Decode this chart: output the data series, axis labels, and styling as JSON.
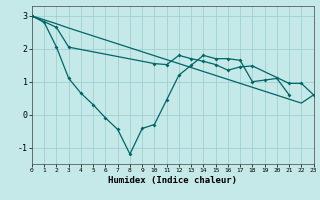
{
  "background_color": "#c5e8e8",
  "grid_color": "#99cccc",
  "line_color": "#006666",
  "xlabel": "Humidex (Indice chaleur)",
  "xlim": [
    0,
    23
  ],
  "ylim": [
    -1.5,
    3.3
  ],
  "yticks": [
    -1,
    0,
    1,
    2,
    3
  ],
  "xticks": [
    0,
    1,
    2,
    3,
    4,
    5,
    6,
    7,
    8,
    9,
    10,
    11,
    12,
    13,
    14,
    15,
    16,
    17,
    18,
    19,
    20,
    21,
    22,
    23
  ],
  "line1_x": [
    0,
    1,
    2,
    3,
    4,
    5,
    6,
    7,
    8,
    9,
    10,
    11,
    12,
    13,
    14,
    15,
    16,
    17,
    18,
    19,
    20,
    21
  ],
  "line1_y": [
    3.0,
    2.8,
    2.05,
    1.1,
    0.65,
    0.3,
    -0.1,
    -0.45,
    -1.2,
    -0.42,
    -0.3,
    0.45,
    1.2,
    1.5,
    1.8,
    1.7,
    1.7,
    1.65,
    1.0,
    1.05,
    1.1,
    0.6
  ],
  "line2_x": [
    0,
    1,
    2,
    3,
    4,
    5,
    6,
    7,
    8,
    9,
    10,
    11,
    12,
    13,
    14,
    15,
    16,
    17,
    18,
    19,
    20,
    21,
    22,
    23
  ],
  "line2_y": [
    3.0,
    2.88,
    2.76,
    2.63,
    2.51,
    2.39,
    2.27,
    2.15,
    2.03,
    1.91,
    1.79,
    1.67,
    1.55,
    1.43,
    1.31,
    1.19,
    1.07,
    0.95,
    0.83,
    0.71,
    0.59,
    0.47,
    0.35,
    0.6
  ],
  "line3_x": [
    0,
    2,
    3,
    10,
    11,
    12,
    13,
    14,
    15,
    16,
    17,
    18,
    21,
    22,
    23
  ],
  "line3_y": [
    3.0,
    2.65,
    2.05,
    1.55,
    1.52,
    1.8,
    1.7,
    1.62,
    1.52,
    1.35,
    1.45,
    1.48,
    0.95,
    0.95,
    0.6
  ]
}
